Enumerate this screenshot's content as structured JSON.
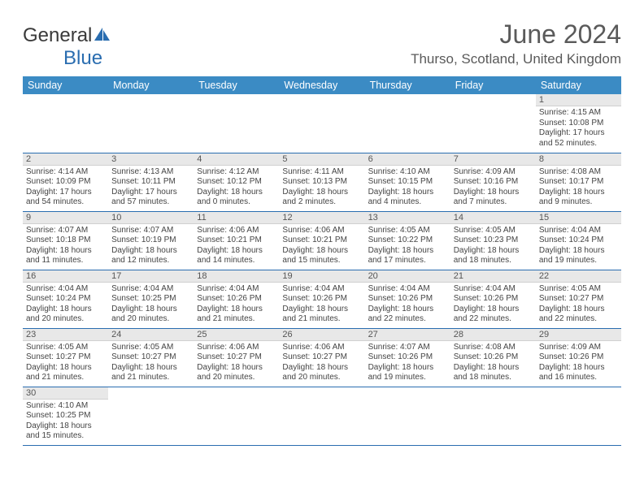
{
  "logo": {
    "general": "General",
    "blue": "Blue"
  },
  "title": "June 2024",
  "location": "Thurso, Scotland, United Kingdom",
  "colors": {
    "header_bg": "#3b8bc4",
    "header_fg": "#ffffff",
    "border": "#2a6db0",
    "daynum_bg": "#e8e8e8",
    "text": "#444444"
  },
  "weekdays": [
    "Sunday",
    "Monday",
    "Tuesday",
    "Wednesday",
    "Thursday",
    "Friday",
    "Saturday"
  ],
  "weeks": [
    [
      null,
      null,
      null,
      null,
      null,
      null,
      {
        "n": "1",
        "sr": "Sunrise: 4:15 AM",
        "ss": "Sunset: 10:08 PM",
        "dl1": "Daylight: 17 hours",
        "dl2": "and 52 minutes."
      }
    ],
    [
      {
        "n": "2",
        "sr": "Sunrise: 4:14 AM",
        "ss": "Sunset: 10:09 PM",
        "dl1": "Daylight: 17 hours",
        "dl2": "and 54 minutes."
      },
      {
        "n": "3",
        "sr": "Sunrise: 4:13 AM",
        "ss": "Sunset: 10:11 PM",
        "dl1": "Daylight: 17 hours",
        "dl2": "and 57 minutes."
      },
      {
        "n": "4",
        "sr": "Sunrise: 4:12 AM",
        "ss": "Sunset: 10:12 PM",
        "dl1": "Daylight: 18 hours",
        "dl2": "and 0 minutes."
      },
      {
        "n": "5",
        "sr": "Sunrise: 4:11 AM",
        "ss": "Sunset: 10:13 PM",
        "dl1": "Daylight: 18 hours",
        "dl2": "and 2 minutes."
      },
      {
        "n": "6",
        "sr": "Sunrise: 4:10 AM",
        "ss": "Sunset: 10:15 PM",
        "dl1": "Daylight: 18 hours",
        "dl2": "and 4 minutes."
      },
      {
        "n": "7",
        "sr": "Sunrise: 4:09 AM",
        "ss": "Sunset: 10:16 PM",
        "dl1": "Daylight: 18 hours",
        "dl2": "and 7 minutes."
      },
      {
        "n": "8",
        "sr": "Sunrise: 4:08 AM",
        "ss": "Sunset: 10:17 PM",
        "dl1": "Daylight: 18 hours",
        "dl2": "and 9 minutes."
      }
    ],
    [
      {
        "n": "9",
        "sr": "Sunrise: 4:07 AM",
        "ss": "Sunset: 10:18 PM",
        "dl1": "Daylight: 18 hours",
        "dl2": "and 11 minutes."
      },
      {
        "n": "10",
        "sr": "Sunrise: 4:07 AM",
        "ss": "Sunset: 10:19 PM",
        "dl1": "Daylight: 18 hours",
        "dl2": "and 12 minutes."
      },
      {
        "n": "11",
        "sr": "Sunrise: 4:06 AM",
        "ss": "Sunset: 10:21 PM",
        "dl1": "Daylight: 18 hours",
        "dl2": "and 14 minutes."
      },
      {
        "n": "12",
        "sr": "Sunrise: 4:06 AM",
        "ss": "Sunset: 10:21 PM",
        "dl1": "Daylight: 18 hours",
        "dl2": "and 15 minutes."
      },
      {
        "n": "13",
        "sr": "Sunrise: 4:05 AM",
        "ss": "Sunset: 10:22 PM",
        "dl1": "Daylight: 18 hours",
        "dl2": "and 17 minutes."
      },
      {
        "n": "14",
        "sr": "Sunrise: 4:05 AM",
        "ss": "Sunset: 10:23 PM",
        "dl1": "Daylight: 18 hours",
        "dl2": "and 18 minutes."
      },
      {
        "n": "15",
        "sr": "Sunrise: 4:04 AM",
        "ss": "Sunset: 10:24 PM",
        "dl1": "Daylight: 18 hours",
        "dl2": "and 19 minutes."
      }
    ],
    [
      {
        "n": "16",
        "sr": "Sunrise: 4:04 AM",
        "ss": "Sunset: 10:24 PM",
        "dl1": "Daylight: 18 hours",
        "dl2": "and 20 minutes."
      },
      {
        "n": "17",
        "sr": "Sunrise: 4:04 AM",
        "ss": "Sunset: 10:25 PM",
        "dl1": "Daylight: 18 hours",
        "dl2": "and 20 minutes."
      },
      {
        "n": "18",
        "sr": "Sunrise: 4:04 AM",
        "ss": "Sunset: 10:26 PM",
        "dl1": "Daylight: 18 hours",
        "dl2": "and 21 minutes."
      },
      {
        "n": "19",
        "sr": "Sunrise: 4:04 AM",
        "ss": "Sunset: 10:26 PM",
        "dl1": "Daylight: 18 hours",
        "dl2": "and 21 minutes."
      },
      {
        "n": "20",
        "sr": "Sunrise: 4:04 AM",
        "ss": "Sunset: 10:26 PM",
        "dl1": "Daylight: 18 hours",
        "dl2": "and 22 minutes."
      },
      {
        "n": "21",
        "sr": "Sunrise: 4:04 AM",
        "ss": "Sunset: 10:26 PM",
        "dl1": "Daylight: 18 hours",
        "dl2": "and 22 minutes."
      },
      {
        "n": "22",
        "sr": "Sunrise: 4:05 AM",
        "ss": "Sunset: 10:27 PM",
        "dl1": "Daylight: 18 hours",
        "dl2": "and 22 minutes."
      }
    ],
    [
      {
        "n": "23",
        "sr": "Sunrise: 4:05 AM",
        "ss": "Sunset: 10:27 PM",
        "dl1": "Daylight: 18 hours",
        "dl2": "and 21 minutes."
      },
      {
        "n": "24",
        "sr": "Sunrise: 4:05 AM",
        "ss": "Sunset: 10:27 PM",
        "dl1": "Daylight: 18 hours",
        "dl2": "and 21 minutes."
      },
      {
        "n": "25",
        "sr": "Sunrise: 4:06 AM",
        "ss": "Sunset: 10:27 PM",
        "dl1": "Daylight: 18 hours",
        "dl2": "and 20 minutes."
      },
      {
        "n": "26",
        "sr": "Sunrise: 4:06 AM",
        "ss": "Sunset: 10:27 PM",
        "dl1": "Daylight: 18 hours",
        "dl2": "and 20 minutes."
      },
      {
        "n": "27",
        "sr": "Sunrise: 4:07 AM",
        "ss": "Sunset: 10:26 PM",
        "dl1": "Daylight: 18 hours",
        "dl2": "and 19 minutes."
      },
      {
        "n": "28",
        "sr": "Sunrise: 4:08 AM",
        "ss": "Sunset: 10:26 PM",
        "dl1": "Daylight: 18 hours",
        "dl2": "and 18 minutes."
      },
      {
        "n": "29",
        "sr": "Sunrise: 4:09 AM",
        "ss": "Sunset: 10:26 PM",
        "dl1": "Daylight: 18 hours",
        "dl2": "and 16 minutes."
      }
    ],
    [
      {
        "n": "30",
        "sr": "Sunrise: 4:10 AM",
        "ss": "Sunset: 10:25 PM",
        "dl1": "Daylight: 18 hours",
        "dl2": "and 15 minutes."
      },
      null,
      null,
      null,
      null,
      null,
      null
    ]
  ]
}
